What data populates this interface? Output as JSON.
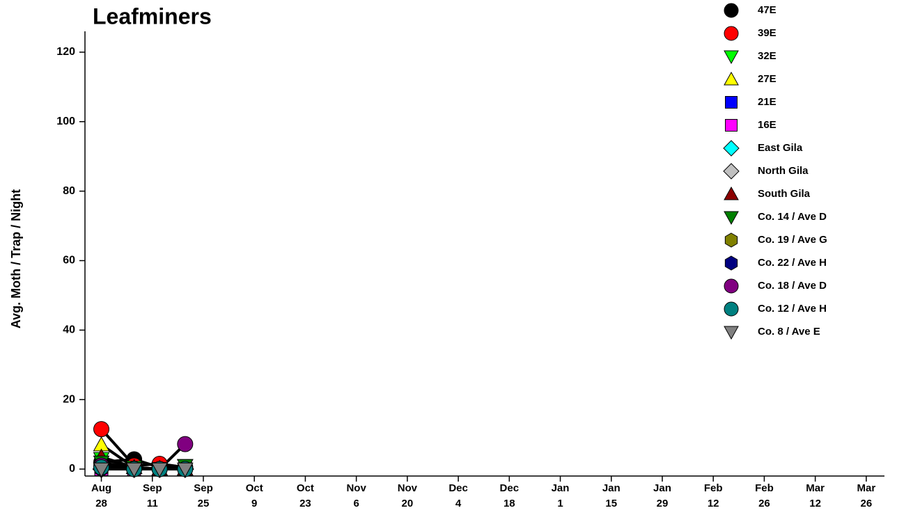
{
  "chart_data": {
    "type": "line",
    "title": "Leafminers",
    "title_color": "#0000ff",
    "y_label": "Avg. Moth / Trap / Night",
    "x": [
      0,
      9,
      16,
      23
    ],
    "xlim": [
      -4.5,
      215
    ],
    "ylim": [
      -2,
      126
    ],
    "xticks": [
      {
        "value": 0,
        "label": "Aug 28"
      },
      {
        "value": 14,
        "label": "Sep 11"
      },
      {
        "value": 28,
        "label": "Sep 25"
      },
      {
        "value": 42,
        "label": "Oct 9"
      },
      {
        "value": 56,
        "label": "Oct 23"
      },
      {
        "value": 70,
        "label": "Nov 6"
      },
      {
        "value": 84,
        "label": "Nov 20"
      },
      {
        "value": 98,
        "label": "Dec 4"
      },
      {
        "value": 112,
        "label": "Dec 18"
      },
      {
        "value": 126,
        "label": "Jan 1"
      },
      {
        "value": 140,
        "label": "Jan 15"
      },
      {
        "value": 154,
        "label": "Jan 29"
      },
      {
        "value": 168,
        "label": "Feb 12"
      },
      {
        "value": 182,
        "label": "Feb 26"
      },
      {
        "value": 196,
        "label": "Mar 12"
      },
      {
        "value": 210,
        "label": "Mar 26"
      }
    ],
    "yticks": [
      0,
      20,
      40,
      60,
      80,
      100,
      120
    ],
    "line_color": "#000000",
    "series": [
      {
        "name": "47E",
        "color": "#000000",
        "marker": "circle",
        "values": [
          2,
          2.8,
          0.5,
          0.5
        ]
      },
      {
        "name": "39E",
        "color": "#ff0000",
        "marker": "circle",
        "values": [
          11.5,
          1,
          1.5,
          0.5
        ]
      },
      {
        "name": "32E",
        "color": "#00ff00",
        "marker": "down",
        "values": [
          3,
          0.5,
          0,
          1
        ]
      },
      {
        "name": "27E",
        "color": "#ffff00",
        "marker": "up",
        "values": [
          7,
          0.5,
          0,
          0
        ]
      },
      {
        "name": "21E",
        "color": "#0000ff",
        "marker": "square",
        "values": [
          0,
          0,
          0,
          0
        ]
      },
      {
        "name": "16E",
        "color": "#ff00ff",
        "marker": "square",
        "values": [
          0,
          0,
          0,
          0
        ]
      },
      {
        "name": "East Gila",
        "color": "#00ffff",
        "marker": "diamond",
        "values": [
          0,
          0,
          0,
          0
        ]
      },
      {
        "name": "North Gila",
        "color": "#c0c0c0",
        "marker": "diamond",
        "values": [
          0,
          0,
          0,
          0
        ]
      },
      {
        "name": "South Gila",
        "color": "#8b0000",
        "marker": "up",
        "values": [
          3.5,
          0.5,
          0,
          0
        ]
      },
      {
        "name": "Co. 14 / Ave D",
        "color": "#008000",
        "marker": "down",
        "values": [
          2,
          0,
          0,
          1
        ]
      },
      {
        "name": "Co. 19 / Ave G",
        "color": "#808000",
        "marker": "hexagon",
        "values": [
          1,
          0,
          0,
          0
        ]
      },
      {
        "name": "Co. 22 / Ave H",
        "color": "#000080",
        "marker": "hexagon",
        "values": [
          0,
          0,
          0,
          0
        ]
      },
      {
        "name": "Co. 18 / Ave D",
        "color": "#800080",
        "marker": "circle",
        "values": [
          1,
          0,
          0,
          7.2
        ]
      },
      {
        "name": "Co. 12 / Ave H",
        "color": "#008080",
        "marker": "circle",
        "values": [
          0.5,
          0,
          0,
          0
        ]
      },
      {
        "name": "Co. 8 / Ave E",
        "color": "#808080",
        "marker": "down",
        "values": [
          0,
          0,
          0,
          0
        ]
      }
    ]
  }
}
